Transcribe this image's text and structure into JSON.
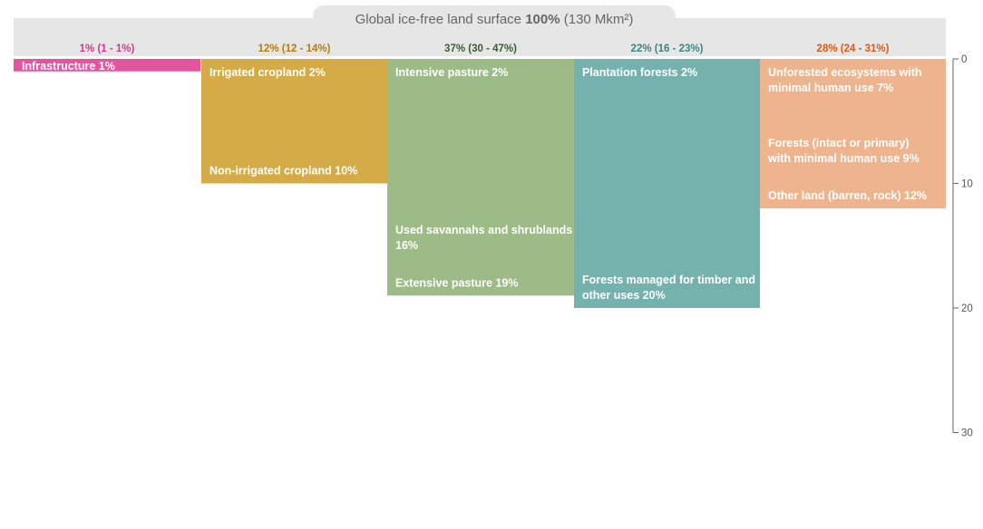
{
  "header": {
    "title_prefix": "Global ice-free land surface ",
    "title_bold": "100%",
    "title_suffix": " (130 Mkm²)",
    "band_color": "#e6e6e6"
  },
  "chart_data": {
    "type": "bar",
    "subtype": "stacked-columns",
    "title": "Global ice-free land surface 100% (130 Mkm²)",
    "xlabel": "",
    "ylabel": "",
    "y_axis": {
      "ylim": [
        0,
        30
      ],
      "ticks": [
        0,
        10,
        20,
        30
      ],
      "position": "right",
      "direction": "downward"
    },
    "grid": false,
    "legend": "none",
    "columns": [
      {
        "header": "1% (1 - 1%)",
        "header_color": "#d6378d",
        "segments": [
          {
            "label": "Infrastructure 1%",
            "value": 1,
            "color": "#e3559f"
          }
        ]
      },
      {
        "header": "12% (12 - 14%)",
        "header_color": "#b07d12",
        "segments": [
          {
            "label": "Irrigated cropland 2%",
            "value": 2,
            "color": "#a67c0a"
          },
          {
            "label": "Non-irrigated cropland 10%",
            "value": 10,
            "color": "#d5ab47"
          }
        ]
      },
      {
        "header": "37% (30 - 47%)",
        "header_color": "#3b5e30",
        "segments": [
          {
            "label": "Intensive pasture 2%",
            "value": 2,
            "color": "#3f6a34"
          },
          {
            "label": "Used savannahs and shrublands 16%",
            "value": 16,
            "color": "#6b9457"
          },
          {
            "label": "Extensive pasture 19%",
            "value": 19,
            "color": "#9cbb87"
          }
        ]
      },
      {
        "header": "22% (16 - 23%)",
        "header_color": "#3c8480",
        "segments": [
          {
            "label": "Plantation forests 2%",
            "value": 2,
            "color": "#4a7f7c"
          },
          {
            "label": "Forests managed for timber and other uses 20%",
            "value": 20,
            "color": "#76b2ad"
          }
        ]
      },
      {
        "header": "28% (24 - 31%)",
        "header_color": "#dd5a14",
        "segments": [
          {
            "label": "Unforested ecosystems with minimal human use  7%",
            "value": 7,
            "color": "#e66a19"
          },
          {
            "label": "Forests (intact or primary) with minimal human use 9%",
            "value": 9,
            "color": "#eb8b5c"
          },
          {
            "label": "Other land (barren, rock) 12%",
            "value": 12,
            "color": "#eeb48d"
          }
        ]
      }
    ]
  }
}
